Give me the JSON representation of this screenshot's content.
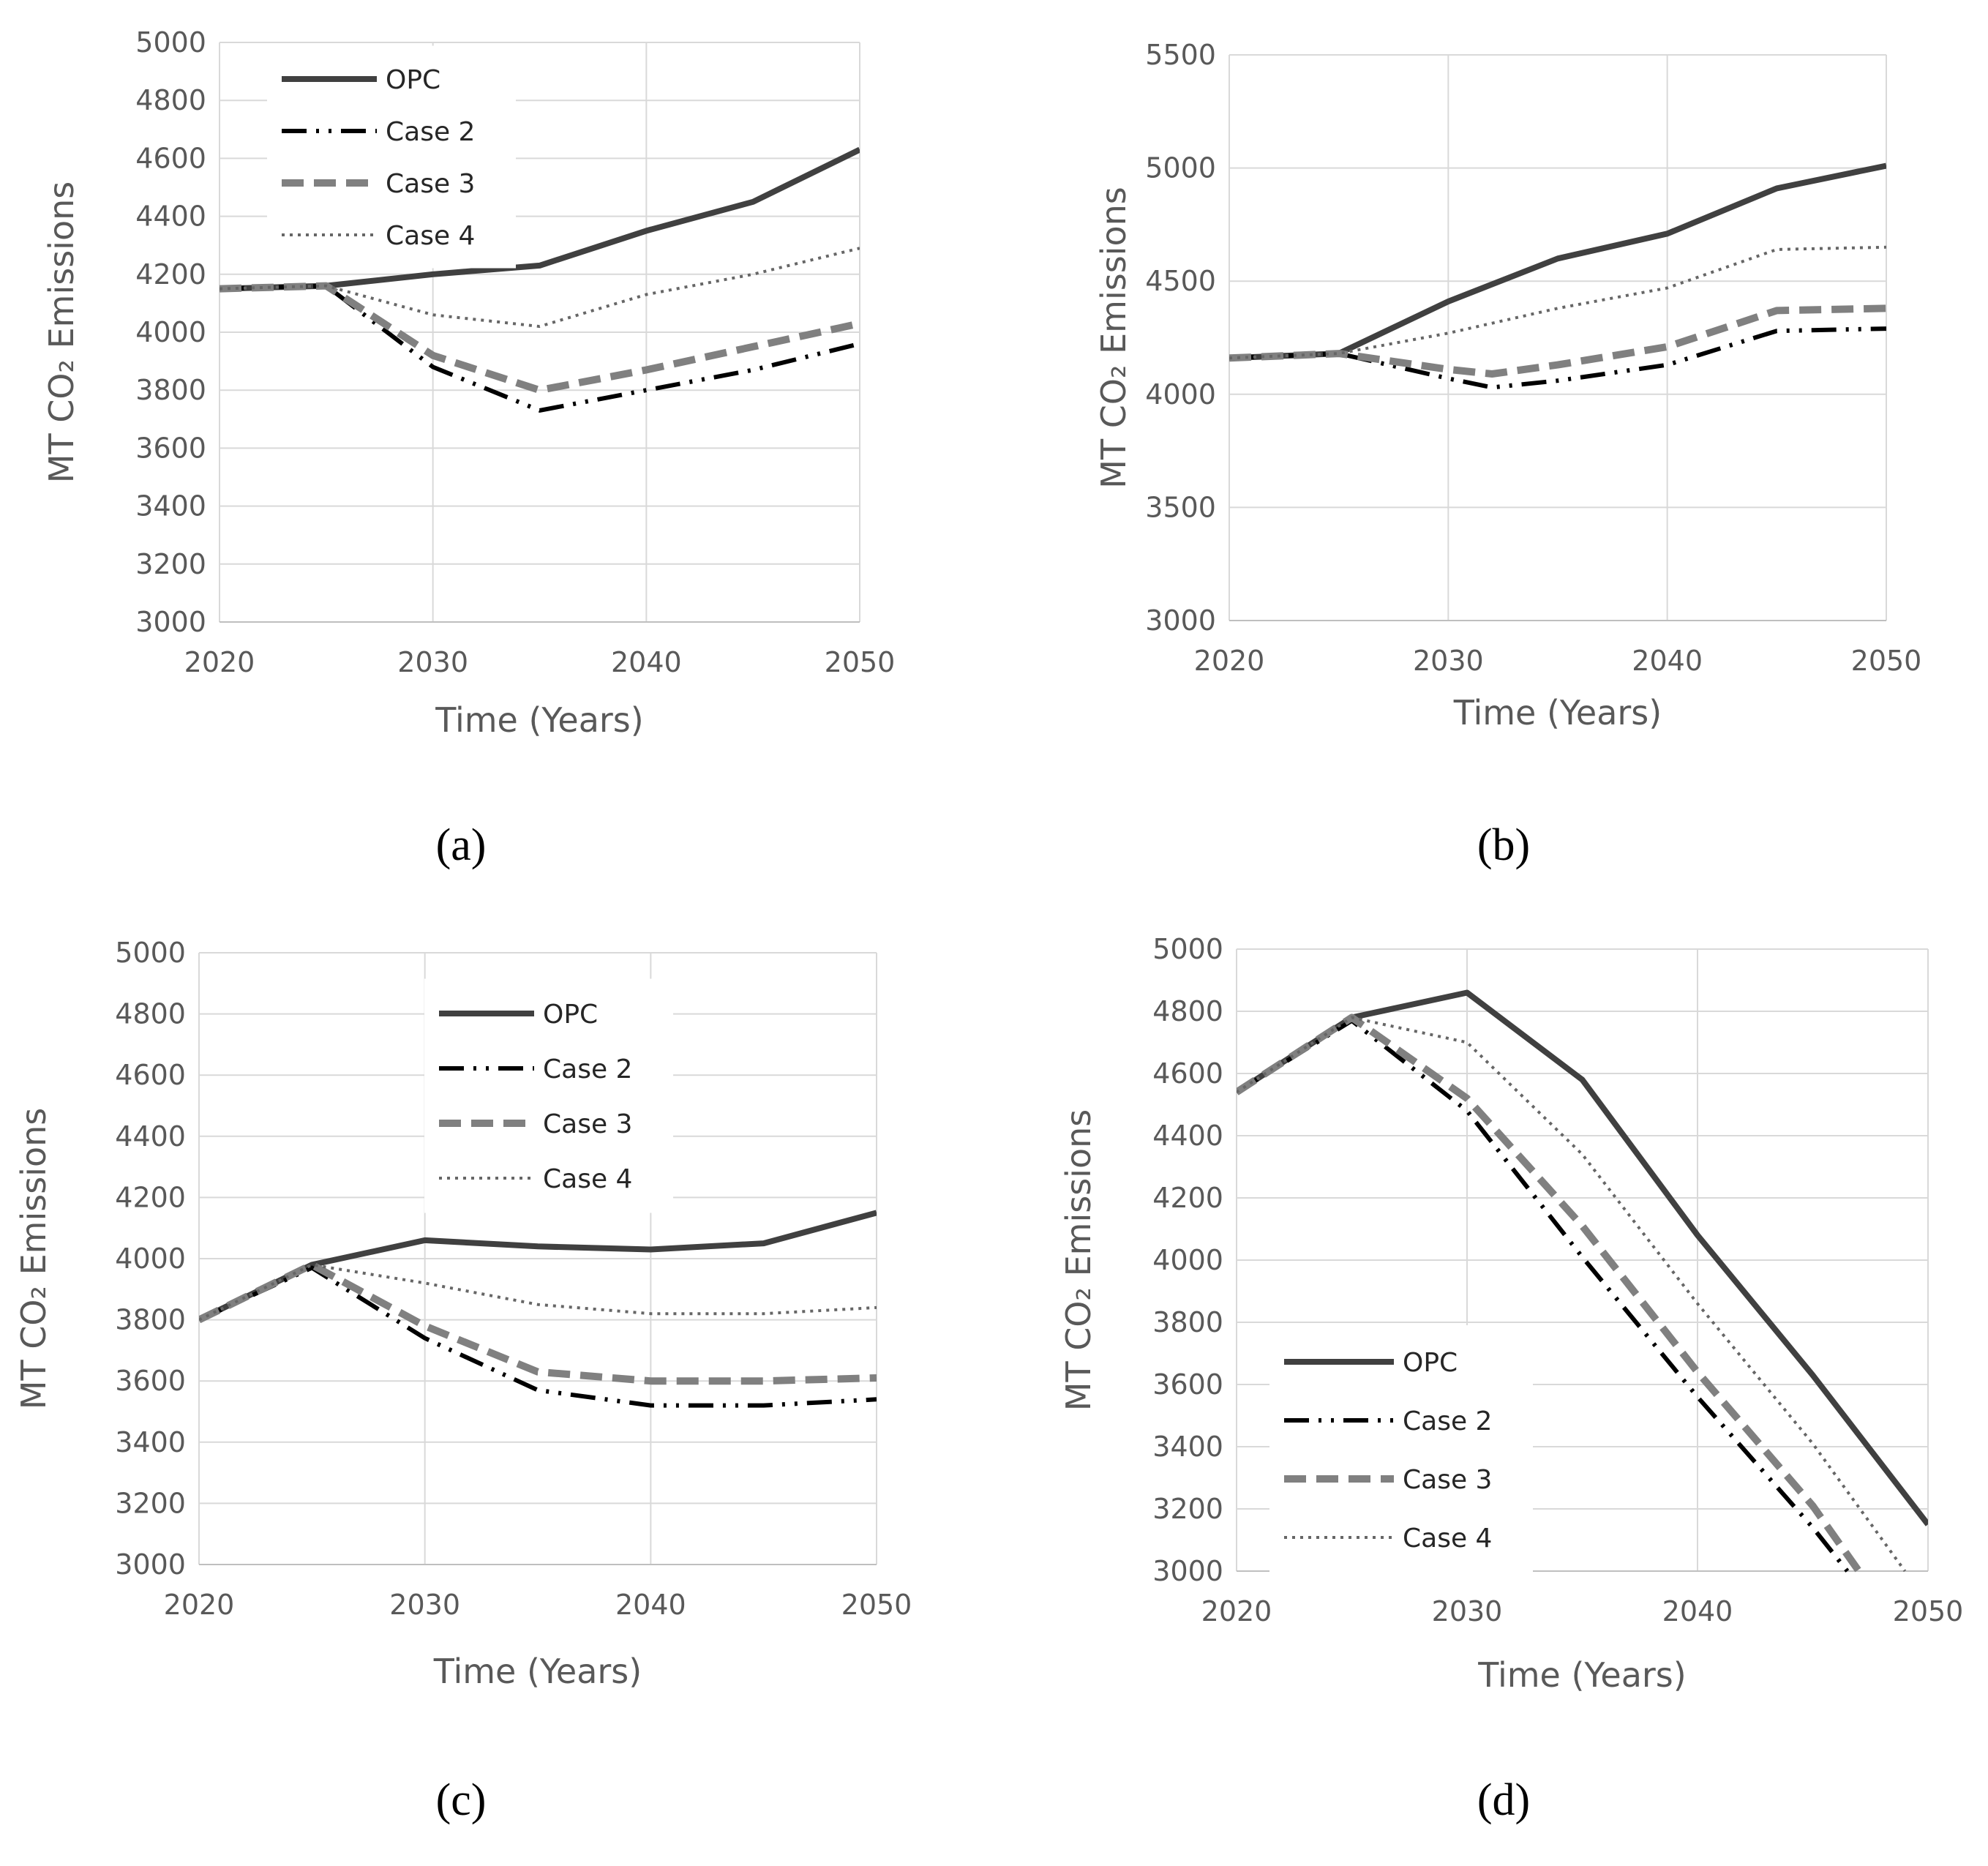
{
  "figure": {
    "panels": [
      "(a)",
      "(b)",
      "(c)",
      "(d)"
    ]
  },
  "chart_data": [
    {
      "panel": "(a)",
      "type": "line",
      "title": "",
      "xlabel": "Time (Years)",
      "ylabel": "MT CO₂ Emissions",
      "xlim": [
        2020,
        2050
      ],
      "ylim": [
        3000,
        5000
      ],
      "xticks": [
        "2020",
        "2030",
        "2040",
        "2050"
      ],
      "yticks": [
        "3000",
        "3200",
        "3400",
        "3600",
        "3800",
        "4000",
        "4200",
        "4400",
        "4600",
        "4800",
        "5000"
      ],
      "legend_position": "top-left",
      "series": [
        {
          "name": "OPC",
          "style": "solid",
          "color": "#404040",
          "x": [
            2020,
            2025,
            2030,
            2035,
            2040,
            2045,
            2050
          ],
          "y": [
            4150,
            4160,
            4200,
            4230,
            4350,
            4450,
            4630
          ]
        },
        {
          "name": "Case 2",
          "style": "dashdotdot",
          "color": "#000000",
          "x": [
            2020,
            2025,
            2030,
            2035,
            2040,
            2045,
            2050
          ],
          "y": [
            4150,
            4160,
            3880,
            3730,
            3800,
            3870,
            3960
          ]
        },
        {
          "name": "Case 3",
          "style": "dashed",
          "color": "#808080",
          "x": [
            2020,
            2025,
            2030,
            2035,
            2040,
            2045,
            2050
          ],
          "y": [
            4150,
            4160,
            3920,
            3800,
            3870,
            3950,
            4030
          ]
        },
        {
          "name": "Case 4",
          "style": "dotted",
          "color": "#666666",
          "x": [
            2020,
            2025,
            2030,
            2035,
            2040,
            2045,
            2050
          ],
          "y": [
            4150,
            4160,
            4060,
            4020,
            4130,
            4200,
            4290
          ]
        }
      ]
    },
    {
      "panel": "(b)",
      "type": "line",
      "title": "",
      "xlabel": "Time (Years)",
      "ylabel": "MT CO₂ Emissions",
      "xlim": [
        2020,
        2050
      ],
      "ylim": [
        3000,
        5500
      ],
      "xticks": [
        "2020",
        "2030",
        "2040",
        "2050"
      ],
      "yticks": [
        "3000",
        "3500",
        "4000",
        "4500",
        "5000",
        "5500"
      ],
      "legend_position": "none",
      "series": [
        {
          "name": "OPC",
          "style": "solid",
          "color": "#404040",
          "x": [
            2020,
            2025,
            2030,
            2035,
            2040,
            2045,
            2050
          ],
          "y": [
            4160,
            4180,
            4410,
            4600,
            4710,
            4910,
            5010
          ]
        },
        {
          "name": "Case 2",
          "style": "dashdotdot",
          "color": "#000000",
          "x": [
            2020,
            2025,
            2030,
            2032,
            2035,
            2040,
            2045,
            2050
          ],
          "y": [
            4160,
            4180,
            4070,
            4030,
            4060,
            4130,
            4280,
            4290
          ]
        },
        {
          "name": "Case 3",
          "style": "dashed",
          "color": "#808080",
          "x": [
            2020,
            2025,
            2030,
            2032,
            2035,
            2040,
            2045,
            2050
          ],
          "y": [
            4160,
            4180,
            4110,
            4090,
            4130,
            4210,
            4370,
            4380
          ]
        },
        {
          "name": "Case 4",
          "style": "dotted",
          "color": "#666666",
          "x": [
            2020,
            2025,
            2030,
            2035,
            2040,
            2045,
            2050
          ],
          "y": [
            4160,
            4180,
            4270,
            4380,
            4470,
            4640,
            4650
          ]
        }
      ]
    },
    {
      "panel": "(c)",
      "type": "line",
      "title": "",
      "xlabel": "Time (Years)",
      "ylabel": "MT CO₂ Emissions",
      "xlim": [
        2020,
        2050
      ],
      "ylim": [
        3000,
        5000
      ],
      "xticks": [
        "2020",
        "2030",
        "2040",
        "2050"
      ],
      "yticks": [
        "3000",
        "3200",
        "3400",
        "3600",
        "3800",
        "4000",
        "4200",
        "4400",
        "4600",
        "4800",
        "5000"
      ],
      "legend_position": "top-center",
      "series": [
        {
          "name": "OPC",
          "style": "solid",
          "color": "#404040",
          "x": [
            2020,
            2025,
            2030,
            2035,
            2040,
            2045,
            2050
          ],
          "y": [
            3800,
            3980,
            4060,
            4040,
            4030,
            4050,
            4150
          ]
        },
        {
          "name": "Case 2",
          "style": "dashdotdot",
          "color": "#000000",
          "x": [
            2020,
            2025,
            2030,
            2035,
            2040,
            2045,
            2050
          ],
          "y": [
            3800,
            3970,
            3740,
            3570,
            3520,
            3520,
            3540
          ]
        },
        {
          "name": "Case 3",
          "style": "dashed",
          "color": "#808080",
          "x": [
            2020,
            2025,
            2030,
            2035,
            2040,
            2045,
            2050
          ],
          "y": [
            3800,
            3980,
            3780,
            3630,
            3600,
            3600,
            3610
          ]
        },
        {
          "name": "Case 4",
          "style": "dotted",
          "color": "#666666",
          "x": [
            2020,
            2025,
            2030,
            2035,
            2040,
            2045,
            2050
          ],
          "y": [
            3800,
            3980,
            3920,
            3850,
            3820,
            3820,
            3840
          ]
        }
      ]
    },
    {
      "panel": "(d)",
      "type": "line",
      "title": "",
      "xlabel": "Time (Years)",
      "ylabel": "MT CO₂ Emissions",
      "xlim": [
        2020,
        2050
      ],
      "ylim": [
        3000,
        5000
      ],
      "xticks": [
        "2020",
        "2030",
        "2040",
        "2050"
      ],
      "yticks": [
        "3000",
        "3200",
        "3400",
        "3600",
        "3800",
        "4000",
        "4200",
        "4400",
        "4600",
        "4800",
        "5000"
      ],
      "legend_position": "bottom-left",
      "series": [
        {
          "name": "OPC",
          "style": "solid",
          "color": "#404040",
          "x": [
            2020,
            2025,
            2030,
            2035,
            2040,
            2045,
            2050
          ],
          "y": [
            4540,
            4780,
            4860,
            4580,
            4080,
            3630,
            3150
          ]
        },
        {
          "name": "Case 2",
          "style": "dashdotdot",
          "color": "#000000",
          "x": [
            2020,
            2025,
            2030,
            2035,
            2040,
            2045,
            2046.5
          ],
          "y": [
            4540,
            4770,
            4480,
            4010,
            3560,
            3140,
            3000
          ]
        },
        {
          "name": "Case 3",
          "style": "dashed",
          "color": "#808080",
          "x": [
            2020,
            2025,
            2030,
            2035,
            2040,
            2045,
            2047
          ],
          "y": [
            4540,
            4780,
            4520,
            4110,
            3640,
            3210,
            3000
          ]
        },
        {
          "name": "Case 4",
          "style": "dotted",
          "color": "#666666",
          "x": [
            2020,
            2025,
            2030,
            2035,
            2040,
            2045,
            2049
          ],
          "y": [
            4540,
            4780,
            4700,
            4340,
            3860,
            3410,
            3000
          ]
        }
      ]
    }
  ]
}
